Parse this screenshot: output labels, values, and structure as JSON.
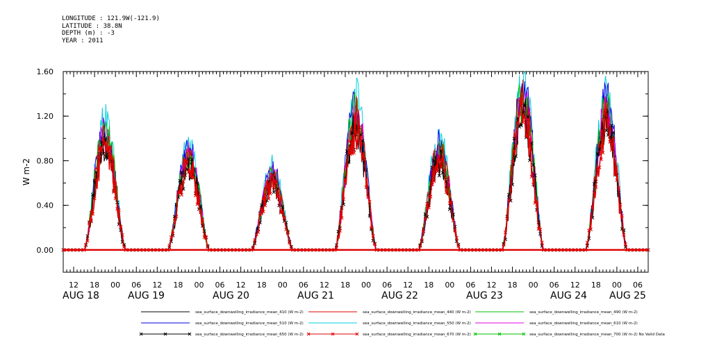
{
  "header": {
    "longitude": "LONGITUDE : 121.9W(-121.9)",
    "latitude": "LATITUDE : 38.8N",
    "depth": "DEPTH (m) : -3",
    "year": "YEAR : 2011"
  },
  "chart_data": {
    "type": "line",
    "ylabel": "W m-2",
    "ylim": [
      -0.2,
      1.6
    ],
    "yticks": [
      0.0,
      0.4,
      0.8,
      1.2,
      1.6
    ],
    "ytick_labels": [
      "0.00",
      "0.40",
      "0.80",
      "1.20",
      "1.60"
    ],
    "x_hour_ticks": [
      "12",
      "18",
      "00",
      "06",
      "12",
      "18",
      "00",
      "06",
      "12",
      "18",
      "00",
      "06",
      "12",
      "18",
      "00",
      "06",
      "12",
      "18",
      "00",
      "06",
      "12",
      "18",
      "00",
      "06",
      "12",
      "18",
      "00",
      "06",
      "12",
      "18",
      "00",
      "06"
    ],
    "x_date_labels": [
      "AUG 18",
      "AUG 19",
      "AUG 20",
      "AUG 21",
      "AUG 22",
      "AUG 23",
      "AUG 24",
      "AUG 25"
    ],
    "xlim_hours": [
      9,
      177
    ],
    "days": [
      {
        "peak": 0.95,
        "start": 15,
        "end": 27
      },
      {
        "peak": 0.78,
        "start": 39,
        "end": 51
      },
      {
        "peak": 0.62,
        "start": 63,
        "end": 75
      },
      {
        "peak": 1.12,
        "start": 87,
        "end": 99
      },
      {
        "peak": 0.82,
        "start": 111,
        "end": 123
      },
      {
        "peak": 1.25,
        "start": 135,
        "end": 147
      },
      {
        "peak": 1.15,
        "start": 159,
        "end": 171
      }
    ],
    "series": [
      {
        "name": "sea_surface_downwelling_irradiance_mean_410 (W m-2)",
        "color": "#000000",
        "factor": 1.0,
        "marker": "none"
      },
      {
        "name": "sea_surface_downwelling_irradiance_mean_440 (W m-2)",
        "color": "#e00000",
        "factor": 1.05,
        "marker": "none"
      },
      {
        "name": "sea_surface_downwelling_irradiance_mean_490 (W m-2)",
        "color": "#00c000",
        "factor": 1.1,
        "marker": "none"
      },
      {
        "name": "sea_surface_downwelling_irradiance_mean_510 (W m-2)",
        "color": "#0000e0",
        "factor": 1.13,
        "marker": "none"
      },
      {
        "name": "sea_surface_downwelling_irradiance_mean_550 (W m-2)",
        "color": "#00d0e0",
        "factor": 1.18,
        "marker": "none"
      },
      {
        "name": "sea_surface_downwelling_irradiance_mean_610 (W m-2)",
        "color": "#e000e0",
        "factor": 1.08,
        "marker": "none"
      },
      {
        "name": "sea_surface_downwelling_irradiance_mean_650 (W m-2)",
        "color": "#000000",
        "factor": 0.97,
        "marker": "x"
      },
      {
        "name": "sea_surface_downwelling_irradiance_mean_670 (W m-2)",
        "color": "#e00000",
        "factor": 0.95,
        "marker": "x"
      },
      {
        "name": "sea_surface_downwelling_irradiance_mean_700 (W m-2) No Valid Data",
        "color": "#00c000",
        "factor": 0.0,
        "marker": "x"
      }
    ]
  }
}
